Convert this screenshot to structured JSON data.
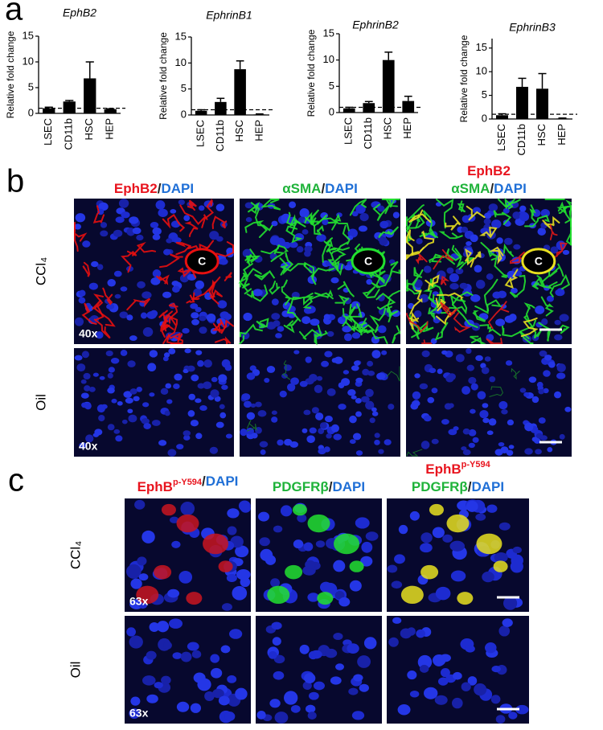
{
  "chart_data": [
    {
      "type": "bar",
      "title": "EphB2",
      "y_label": "Relative fold change",
      "categories": [
        "LSEC",
        "CD11b",
        "HSC",
        "HEP"
      ],
      "values": [
        1.0,
        2.3,
        6.8,
        0.8
      ],
      "errors": [
        0.2,
        0.2,
        3.2,
        0.1
      ],
      "reference": 1,
      "color": "#000000",
      "ylim": [
        0,
        15
      ],
      "yticks": [
        0,
        5,
        10,
        15
      ]
    },
    {
      "type": "bar",
      "title": "EphrinB1",
      "y_label": "Relative fold change",
      "categories": [
        "LSEC",
        "CD11b",
        "HSC",
        "HEP"
      ],
      "values": [
        0.8,
        2.5,
        8.8,
        0.1
      ],
      "errors": [
        0.2,
        0.7,
        1.6,
        0.1
      ],
      "reference": 1,
      "color": "#000000",
      "ylim": [
        0,
        15
      ],
      "yticks": [
        0,
        5,
        10,
        15
      ]
    },
    {
      "type": "bar",
      "title": "EphrinB2",
      "y_label": "Relative fold change",
      "categories": [
        "LSEC",
        "CD11b",
        "HSC",
        "HEP"
      ],
      "values": [
        0.8,
        1.8,
        10.0,
        2.2
      ],
      "errors": [
        0.2,
        0.3,
        1.5,
        0.9
      ],
      "reference": 1,
      "color": "#000000",
      "ylim": [
        0,
        15
      ],
      "yticks": [
        0,
        5,
        10,
        15
      ]
    },
    {
      "type": "bar",
      "title": "EphrinB3",
      "y_label": "Relative fold change",
      "categories": [
        "LSEC",
        "CD11b",
        "HSC",
        "HEP"
      ],
      "values": [
        0.8,
        6.8,
        6.4,
        0.1
      ],
      "errors": [
        0.3,
        1.8,
        3.2,
        0.1
      ],
      "reference": 1,
      "color": "#000000",
      "ylim": [
        0,
        17
      ],
      "yticks": [
        0,
        5,
        10,
        15
      ]
    }
  ],
  "figure": {
    "panel_a_label": "a",
    "panel_b": {
      "label": "b",
      "rows": [
        "CCl₄",
        "Oil"
      ],
      "magnification": "40x",
      "center_label": "C",
      "columns": [
        {
          "lines": [
            [
              {
                "text": "EphB2",
                "color": "#e8141e"
              },
              {
                "text": "/",
                "color": "#222222"
              },
              {
                "text": "DAPI",
                "color": "#1f6fd6"
              }
            ]
          ]
        },
        {
          "lines": [
            [
              {
                "text": "αSMA",
                "color": "#1fb33a"
              },
              {
                "text": "/",
                "color": "#222222"
              },
              {
                "text": "DAPI",
                "color": "#1f6fd6"
              }
            ]
          ]
        },
        {
          "lines": [
            [
              {
                "text": "EphB2",
                "color": "#e8141e"
              }
            ],
            [
              {
                "text": "αSMA",
                "color": "#1fb33a"
              },
              {
                "text": "/",
                "color": "#222222"
              },
              {
                "text": "DAPI",
                "color": "#1f6fd6"
              }
            ]
          ]
        }
      ]
    },
    "panel_c": {
      "label": "c",
      "rows": [
        "CCl₄",
        "Oil"
      ],
      "magnification": "63x",
      "columns": [
        {
          "lines": [
            [
              {
                "text": "EphB",
                "sup": "p-Y594",
                "color": "#e8141e"
              },
              {
                "text": "/",
                "color": "#222222"
              },
              {
                "text": "DAPI",
                "color": "#1f6fd6"
              }
            ]
          ]
        },
        {
          "lines": [
            [
              {
                "text": "PDGFRβ",
                "color": "#1fb33a"
              },
              {
                "text": "/",
                "color": "#222222"
              },
              {
                "text": "DAPI",
                "color": "#1f6fd6"
              }
            ]
          ]
        },
        {
          "lines": [
            [
              {
                "text": "EphB",
                "sup": "p-Y594",
                "color": "#e8141e"
              }
            ],
            [
              {
                "text": "PDGFRβ",
                "color": "#1fb33a"
              },
              {
                "text": "/",
                "color": "#222222"
              },
              {
                "text": "DAPI",
                "color": "#1f6fd6"
              }
            ]
          ]
        }
      ]
    }
  }
}
